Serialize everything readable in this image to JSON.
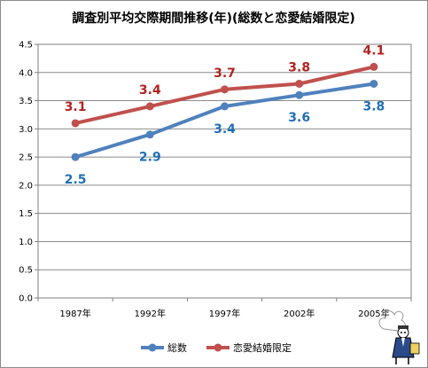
{
  "chart_data": {
    "type": "line",
    "title": "調査別平均交際期間推移(年)(総数と恋愛結婚限定)",
    "categories": [
      "1987年",
      "1992年",
      "1997年",
      "2002年",
      "2005年"
    ],
    "series": [
      {
        "name": "総数",
        "values": [
          2.5,
          2.9,
          3.4,
          3.6,
          3.8
        ],
        "color": "#4f81bd",
        "label_color": "#1f6fb5",
        "label_position": "below"
      },
      {
        "name": "恋愛結婚限定",
        "values": [
          3.1,
          3.4,
          3.7,
          3.8,
          4.1
        ],
        "color": "#c0504d",
        "label_color": "#b22222",
        "label_position": "above"
      }
    ],
    "ylim": [
      0,
      4.5
    ],
    "ytick_step": 0.5,
    "yticks": [
      "0.0",
      "0.5",
      "1.0",
      "1.5",
      "2.0",
      "2.5",
      "3.0",
      "3.5",
      "4.0",
      "4.5"
    ],
    "grid": true,
    "legend": "bottom",
    "xlabel": "",
    "ylabel": ""
  },
  "mascot_icon": "mascot-character-icon"
}
